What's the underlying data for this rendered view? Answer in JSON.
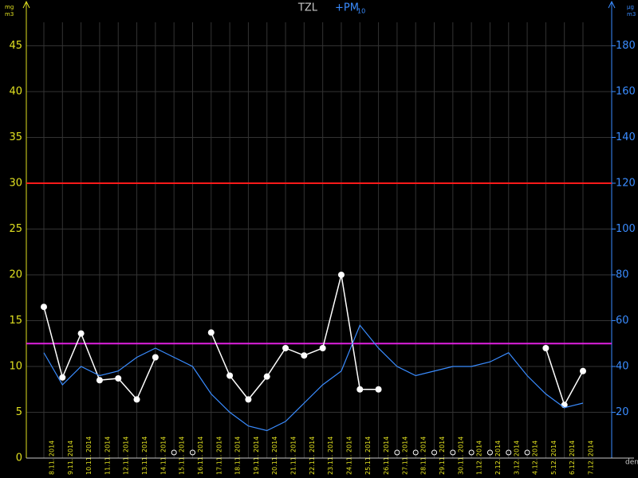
{
  "chart_data": {
    "type": "line",
    "series": [
      {
        "name": "TZL",
        "color": "#ffffff",
        "axis": "y",
        "values": [
          16.5,
          8.8,
          13.6,
          8.5,
          8.7,
          6.4,
          11,
          null,
          null,
          13.7,
          9,
          6.4,
          8.9,
          12,
          11.2,
          12,
          20,
          7.5,
          7.5,
          null,
          null,
          null,
          null,
          null,
          null,
          null,
          null,
          12,
          5.8,
          9.5
        ]
      },
      {
        "name": "+PM",
        "name_sub": "10",
        "color": "#3a8cff",
        "axis": "y2",
        "values": [
          46,
          32,
          40,
          36,
          38,
          44,
          48,
          44,
          40,
          28,
          20,
          14,
          12,
          16,
          24,
          32,
          38,
          58,
          48,
          40,
          36,
          38,
          40,
          40,
          42,
          46,
          36,
          28,
          22,
          24
        ]
      }
    ],
    "categories": [
      "8.11. 2014",
      "9.11. 2014",
      "10.11. 2014",
      "11.11. 2014",
      "12.11. 2014",
      "13.11. 2014",
      "14.11. 2014",
      "15.11. 2014",
      "16.11. 2014",
      "17.11. 2014",
      "18.11. 2014",
      "19.11. 2014",
      "20.11. 2014",
      "21.11. 2014",
      "22.11. 2014",
      "23.11. 2014",
      "24.11. 2014",
      "25.11. 2014",
      "26.11. 2014",
      "27.11. 2014",
      "28.11. 2014",
      "29.11. 2014",
      "30.11. 2014",
      "1.12. 2014",
      "2.12. 2014",
      "3.12. 2014",
      "4.12. 2014",
      "5.12. 2014",
      "6.12. 2014",
      "7.12. 2014"
    ],
    "ylim": [
      0,
      49.3
    ],
    "yticks": [
      0,
      5,
      10,
      15,
      20,
      25,
      30,
      35,
      40,
      45
    ],
    "y2lim": [
      0,
      197.2
    ],
    "y2ticks": [
      20,
      40,
      60,
      80,
      100,
      120,
      140,
      160,
      180
    ],
    "limits": [
      {
        "value": 30,
        "color": "#ff1a1a"
      },
      {
        "value": 12.5,
        "color": "#e020e0"
      }
    ],
    "ylabel_num": "mg",
    "ylabel_den": "m3",
    "y2label_num": "µg",
    "y2label_den": "m3",
    "xlabel": "den",
    "grid": true
  }
}
